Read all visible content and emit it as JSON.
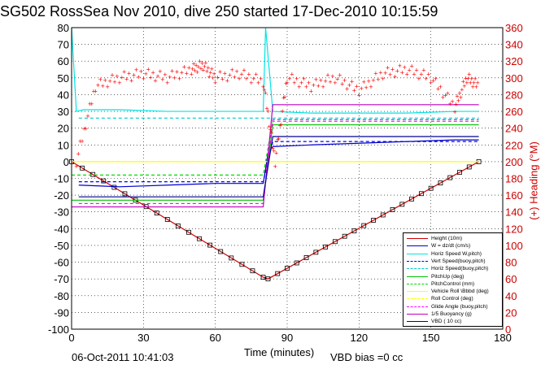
{
  "title": "SG502 RossSea Nov 2010, dive 250 started 17-Dec-2010 10:15:59",
  "xlabel": "Time (minutes)",
  "y2label": "(+) Heading (°M)",
  "timestamp": "06-Oct-2011 10:41:03",
  "vbd_bias": "VBD bias =0 cc",
  "colors": {
    "height": "#cc0000",
    "w": "#0000cc",
    "horiz_speed": "#00e5e5",
    "vert_speed_buoy": "#0000ff",
    "horiz_speed_buoy": "#00c8c8",
    "pitch_up": "#00c000",
    "pitch_control": "#00dd00",
    "vbd_roll": "#ffff00",
    "roll_control": "#ffff00",
    "glide_angle": "#ff00ff",
    "buoyancy": "#c000c0",
    "vbd": "#000099",
    "heading": "#ff0000"
  },
  "chart_data": {
    "type": "line",
    "title": "SG502 RossSea Nov 2010, dive 250 started 17-Dec-2010 10:15:59",
    "xlabel": "Time (minutes)",
    "ylabel": "",
    "y2label": "(+) Heading (°M)",
    "xlim": [
      0,
      180
    ],
    "ylim": [
      -100,
      80
    ],
    "y2lim": [
      0,
      360
    ],
    "xticks": [
      0,
      30,
      60,
      90,
      120,
      150,
      180
    ],
    "yticks": [
      -100,
      -90,
      -80,
      -70,
      -60,
      -50,
      -40,
      -30,
      -20,
      -10,
      0,
      10,
      20,
      30,
      40,
      50,
      60,
      70,
      80
    ],
    "y2ticks": [
      0,
      20,
      40,
      60,
      80,
      100,
      120,
      140,
      160,
      180,
      200,
      220,
      240,
      260,
      280,
      300,
      320,
      340,
      360
    ],
    "grid": true,
    "legend_position": "bottom-right",
    "legend": [
      "Height (10m)",
      "W = dz/dt (cm/s)",
      "Horiz Speed W,pitch)",
      "Vert Speed(buoy,pitch)",
      "Horiz Speed(buoy,pitch)",
      "PitchUp (deg)",
      "PitchControl (mm)",
      "Vehicle Roll \\Bbbd (deg)",
      "Roll Control (deg)",
      "Glide Angle (buoy,pitch)",
      "1/5 Buoyancy (g)",
      "VBD ( 10 cc)"
    ],
    "series": [
      {
        "name": "Height (10m)",
        "x": [
          0,
          80,
          82,
          170
        ],
        "y": [
          0,
          -69,
          -70,
          0
        ]
      },
      {
        "name": "W = dz/dt (cm/s)",
        "x": [
          3,
          20,
          40,
          60,
          80,
          82,
          84,
          100,
          120,
          140,
          160,
          170
        ],
        "y": [
          -14,
          -15,
          -14,
          -13,
          -13,
          5,
          9,
          10,
          11,
          12,
          13,
          13
        ]
      },
      {
        "name": "Horiz Speed W,pitch)",
        "x": [
          0,
          2,
          5,
          20,
          40,
          60,
          80,
          81,
          84,
          100,
          120,
          140,
          160,
          170
        ],
        "y": [
          80,
          30,
          31,
          31,
          30,
          30,
          30,
          80,
          30,
          29,
          29,
          29,
          30,
          30
        ]
      },
      {
        "name": "Vert Speed(buoy,pitch)",
        "x": [
          3,
          80,
          84,
          170
        ],
        "y": [
          -12,
          -12,
          12,
          12
        ]
      },
      {
        "name": "Horiz Speed(buoy,pitch)",
        "x": [
          3,
          80,
          84,
          170
        ],
        "y": [
          26,
          26,
          26,
          26
        ]
      },
      {
        "name": "PitchUp (deg)",
        "x": [
          0,
          80,
          84,
          170
        ],
        "y": [
          -23,
          -23,
          22,
          22
        ]
      },
      {
        "name": "PitchControl (mm)",
        "x": [
          0,
          80,
          84,
          170
        ],
        "y": [
          -8,
          -8,
          24,
          24
        ]
      },
      {
        "name": "Vehicle Roll \\Bbbd (deg)",
        "x": [
          0,
          10,
          40,
          70,
          80,
          84,
          120,
          160,
          170
        ],
        "y": [
          0,
          0,
          0,
          0,
          0,
          0,
          0,
          0,
          0
        ]
      },
      {
        "name": "Roll Control (deg)",
        "x": [
          0,
          80,
          84,
          170
        ],
        "y": [
          0,
          0,
          0,
          0
        ]
      },
      {
        "name": "Glide Angle (buoy,pitch)",
        "x": [
          3,
          80,
          84,
          170
        ],
        "y": [
          -25,
          -25,
          25,
          25
        ]
      },
      {
        "name": "1/5 Buoyancy (g)",
        "x": [
          0,
          80,
          84,
          170
        ],
        "y": [
          -27,
          -27,
          34,
          34
        ]
      },
      {
        "name": "VBD ( 10 cc)",
        "x": [
          3,
          80,
          84,
          170
        ],
        "y": [
          -21,
          -21,
          15,
          15
        ]
      },
      {
        "name": "Heading",
        "axis": "right",
        "x": [
          2,
          10,
          20,
          30,
          40,
          50,
          55,
          60,
          70,
          80,
          85,
          90,
          100,
          110,
          120,
          130,
          140,
          150,
          160,
          165,
          170
        ],
        "y": [
          200,
          290,
          300,
          305,
          300,
          310,
          315,
          300,
          305,
          295,
          200,
          300,
          290,
          300,
          285,
          305,
          310,
          300,
          265,
          300,
          290
        ]
      }
    ]
  }
}
